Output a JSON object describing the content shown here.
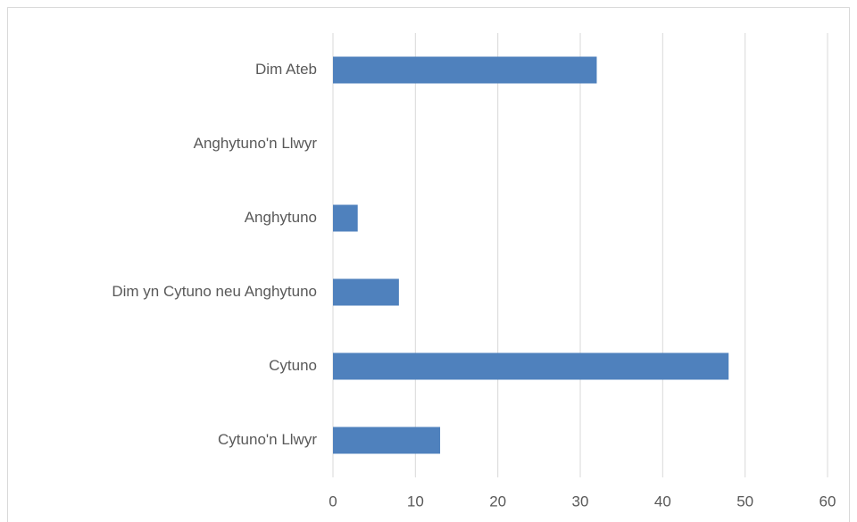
{
  "chart_data": {
    "type": "bar",
    "orientation": "horizontal",
    "categories": [
      "Cytuno'n Llwyr",
      "Cytuno",
      "Dim yn Cytuno neu Anghytuno",
      "Anghytuno",
      "Anghytuno'n Llwyr",
      "Dim Ateb"
    ],
    "values": [
      13,
      48,
      8,
      3,
      0,
      32
    ],
    "color": "#4f81bd",
    "xlim": [
      0,
      60
    ],
    "xticks": [
      0,
      10,
      20,
      30,
      40,
      50,
      60
    ],
    "grid": true
  }
}
